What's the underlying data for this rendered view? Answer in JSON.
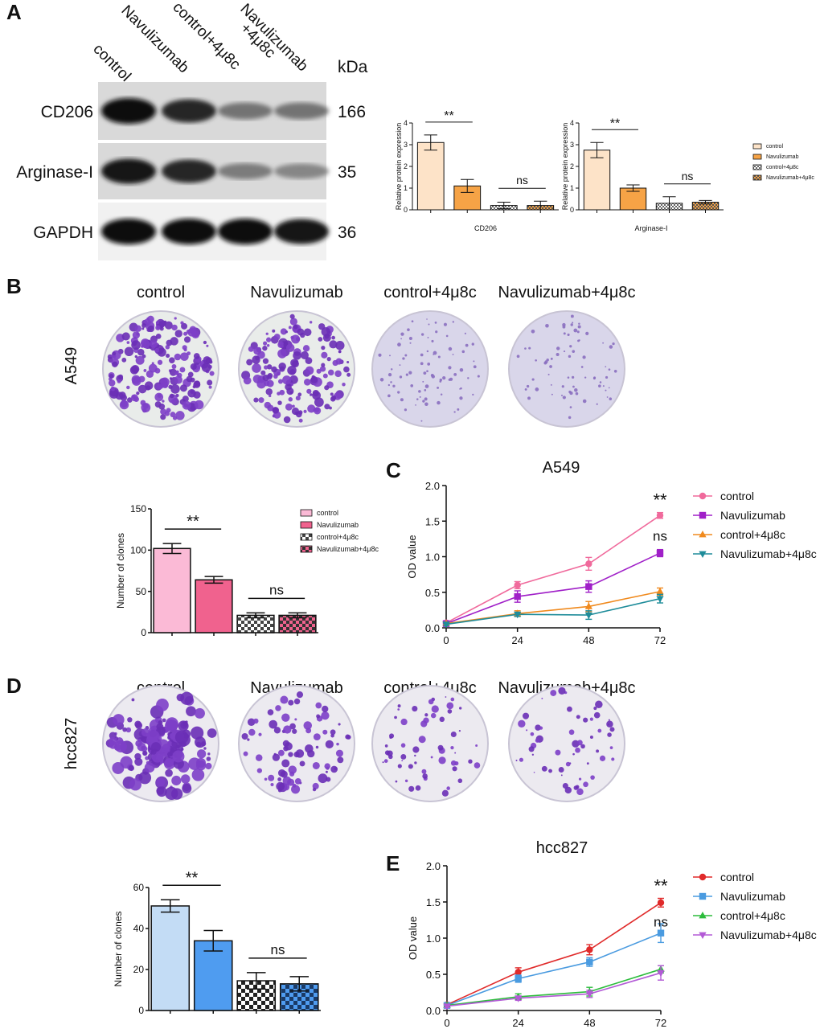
{
  "panel_labels": [
    "A",
    "B",
    "C",
    "D",
    "E"
  ],
  "western_blot": {
    "lanes": [
      "control",
      "Navulizumab",
      "control+4μ8c",
      "Navulizumab",
      "+4μ8c"
    ],
    "kda_label": "kDa",
    "bands": [
      {
        "name": "CD206",
        "kda": "166",
        "intensity": [
          1.0,
          0.85,
          0.45,
          0.45
        ]
      },
      {
        "name": "Arginase-I",
        "kda": "35",
        "intensity": [
          0.95,
          0.85,
          0.4,
          0.35
        ]
      },
      {
        "name": "GAPDH",
        "kda": "36",
        "intensity": [
          1.0,
          1.0,
          1.0,
          0.95
        ]
      }
    ]
  },
  "plates": {
    "headers": [
      "control",
      "Navulizumab",
      "control+4μ8c",
      "Navulizumab+4μ8c"
    ],
    "rows": [
      {
        "label": "A549",
        "density": [
          1.0,
          0.75,
          0.25,
          0.2
        ]
      },
      {
        "label": "hcc827",
        "density": [
          0.8,
          0.35,
          0.15,
          0.15
        ]
      }
    ]
  },
  "chart_data": [
    {
      "type": "bar",
      "panel": "A",
      "xlabel": "CD206",
      "ylabel": "Relative protein expression",
      "ylim": [
        0,
        4
      ],
      "yticks": [
        "0",
        "1",
        "2",
        "3",
        "4"
      ],
      "categories": [
        "control",
        "Navulizumab",
        "control+4μ8c",
        "Navulizumab+4μ8c"
      ],
      "values": [
        3.1,
        1.1,
        0.2,
        0.2
      ],
      "errors": [
        0.35,
        0.3,
        0.15,
        0.2
      ],
      "annotations": [
        "**",
        "ns"
      ]
    },
    {
      "type": "bar",
      "panel": "A",
      "xlabel": "Arginase-I",
      "ylabel": "Relative protein expression",
      "ylim": [
        0,
        4
      ],
      "yticks": [
        "0",
        "1",
        "2",
        "3",
        "4"
      ],
      "categories": [
        "control",
        "Navulizumab",
        "control+4μ8c",
        "Navulizumab+4μ8c"
      ],
      "values": [
        2.75,
        1.0,
        0.3,
        0.35
      ],
      "errors": [
        0.35,
        0.15,
        0.3,
        0.08
      ],
      "annotations": [
        "**",
        "ns"
      ],
      "legend": [
        "control",
        "Navulizumab",
        "control+4μ8c",
        "Navulizumab+4μ8c"
      ]
    },
    {
      "type": "bar",
      "panel": "B",
      "xlabel": "",
      "ylabel": "Number of clones",
      "ylim": [
        0,
        150
      ],
      "yticks": [
        "0",
        "50",
        "100",
        "150"
      ],
      "categories": [
        "control",
        "Navulizumab",
        "control+4μ8c",
        "Navulizumab+4μ8c"
      ],
      "values": [
        102,
        64,
        21,
        21
      ],
      "errors": [
        6,
        4,
        3,
        3
      ],
      "annotations": [
        "**",
        "ns"
      ],
      "legend": [
        "control",
        "Navulizumab",
        "control+4μ8c",
        "Navulizumab+4μ8c"
      ]
    },
    {
      "type": "line",
      "panel": "C",
      "title": "A549",
      "xlabel": "",
      "ylabel": "OD value",
      "x": [
        0,
        24,
        48,
        72
      ],
      "xticks": [
        "0",
        "24",
        "48",
        "72"
      ],
      "ylim": [
        0,
        2.0
      ],
      "yticks": [
        "0.0",
        "0.5",
        "1.0",
        "1.5",
        "2.0"
      ],
      "series": [
        {
          "name": "control",
          "values": [
            0.07,
            0.6,
            0.9,
            1.58
          ],
          "errors": [
            0.02,
            0.05,
            0.09,
            0.04
          ],
          "color": "#f06a9c",
          "marker": "circle"
        },
        {
          "name": "Navulizumab",
          "values": [
            0.06,
            0.44,
            0.58,
            1.05
          ],
          "errors": [
            0.02,
            0.08,
            0.08,
            0.05
          ],
          "color": "#a020c8",
          "marker": "square"
        },
        {
          "name": "control+4μ8c",
          "values": [
            0.06,
            0.2,
            0.3,
            0.51
          ],
          "errors": [
            0.02,
            0.04,
            0.07,
            0.05
          ],
          "color": "#f08a1e",
          "marker": "tri-up"
        },
        {
          "name": "Navulizumab+4μ8c",
          "values": [
            0.05,
            0.19,
            0.18,
            0.41
          ],
          "errors": [
            0.02,
            0.03,
            0.06,
            0.06
          ],
          "color": "#1e8c9a",
          "marker": "tri-down"
        }
      ],
      "annotations": [
        "**",
        "ns"
      ]
    },
    {
      "type": "bar",
      "panel": "D",
      "xlabel": "",
      "ylabel": "Number of clones",
      "ylim": [
        0,
        60
      ],
      "yticks": [
        "0",
        "20",
        "40",
        "60"
      ],
      "categories": [
        "control",
        "Navulizumab",
        "control+4μ8c",
        "Navulizumab+4μ8c"
      ],
      "values": [
        51,
        34,
        14.5,
        13
      ],
      "errors": [
        3,
        5,
        4,
        3.5
      ],
      "annotations": [
        "**",
        "ns"
      ]
    },
    {
      "type": "line",
      "panel": "E",
      "title": "hcc827",
      "xlabel": "",
      "ylabel": "OD value",
      "x": [
        0,
        24,
        48,
        72
      ],
      "xticks": [
        "0",
        "24",
        "48",
        "72"
      ],
      "ylim": [
        0,
        2.0
      ],
      "yticks": [
        "0.0",
        "0.5",
        "1.0",
        "1.5",
        "2.0"
      ],
      "series": [
        {
          "name": "control",
          "values": [
            0.08,
            0.53,
            0.84,
            1.49
          ],
          "errors": [
            0.02,
            0.06,
            0.07,
            0.06
          ],
          "color": "#e02a2a",
          "marker": "circle"
        },
        {
          "name": "Navulizumab",
          "values": [
            0.07,
            0.44,
            0.67,
            1.07
          ],
          "errors": [
            0.02,
            0.05,
            0.06,
            0.13
          ],
          "color": "#4a9be0",
          "marker": "square"
        },
        {
          "name": "control+4μ8c",
          "values": [
            0.07,
            0.19,
            0.26,
            0.57
          ],
          "errors": [
            0.02,
            0.04,
            0.06,
            0.05
          ],
          "color": "#2cbc3c",
          "marker": "tri-up"
        },
        {
          "name": "Navulizumab+4μ8c",
          "values": [
            0.06,
            0.17,
            0.23,
            0.52
          ],
          "errors": [
            0.02,
            0.03,
            0.05,
            0.1
          ],
          "color": "#b35ad6",
          "marker": "tri-down"
        }
      ],
      "annotations": [
        "**",
        "ns"
      ]
    }
  ],
  "colors": {
    "a_bars": [
      "#fde3c8",
      "#f6a346",
      "#888888",
      "#f6a346"
    ],
    "b_bars": [
      "#fbbad6",
      "#f0628e",
      "#555555",
      "#f0628e"
    ],
    "d_bars": [
      "#c3dcf5",
      "#4f9cf0",
      "#333333",
      "#4f9cf0"
    ]
  }
}
